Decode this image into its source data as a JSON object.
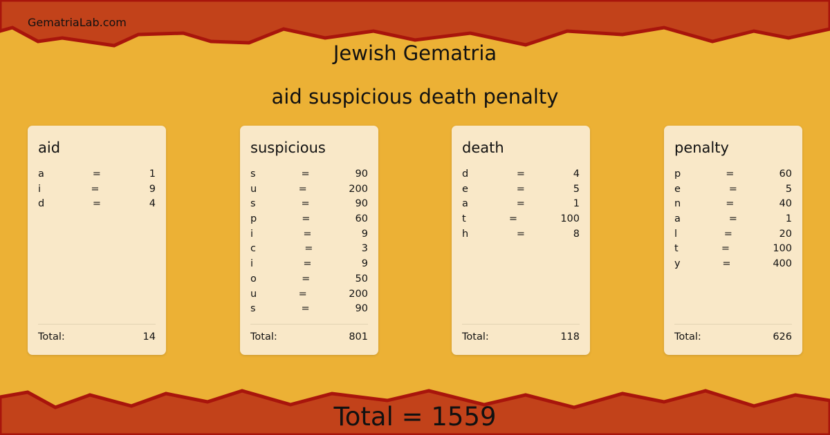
{
  "site": "GematriaLab.com",
  "heading": "Jewish Gematria",
  "phrase": "aid suspicious death penalty",
  "colors": {
    "background": "#ecb135",
    "band": "#c2421a",
    "band_edge": "#a8150c",
    "card": "#f9e8c8"
  },
  "total_label": "Total:",
  "words": [
    {
      "word": "aid",
      "letters": [
        [
          "a",
          "=",
          "1"
        ],
        [
          "i",
          "=",
          "9"
        ],
        [
          "d",
          "=",
          "4"
        ]
      ],
      "total": "14"
    },
    {
      "word": "suspicious",
      "letters": [
        [
          "s",
          "=",
          "90"
        ],
        [
          "u",
          "=",
          "200"
        ],
        [
          "s",
          "=",
          "90"
        ],
        [
          "p",
          "=",
          "60"
        ],
        [
          "i",
          "=",
          "9"
        ],
        [
          "c",
          "=",
          "3"
        ],
        [
          "i",
          "=",
          "9"
        ],
        [
          "o",
          "=",
          "50"
        ],
        [
          "u",
          "=",
          "200"
        ],
        [
          "s",
          "=",
          "90"
        ]
      ],
      "total": "801"
    },
    {
      "word": "death",
      "letters": [
        [
          "d",
          "=",
          "4"
        ],
        [
          "e",
          "=",
          "5"
        ],
        [
          "a",
          "=",
          "1"
        ],
        [
          "t",
          "=",
          "100"
        ],
        [
          "h",
          "=",
          "8"
        ]
      ],
      "total": "118"
    },
    {
      "word": "penalty",
      "letters": [
        [
          "p",
          "=",
          "60"
        ],
        [
          "e",
          "=",
          "5"
        ],
        [
          "n",
          "=",
          "40"
        ],
        [
          "a",
          "=",
          "1"
        ],
        [
          "l",
          "=",
          "20"
        ],
        [
          "t",
          "=",
          "100"
        ],
        [
          "y",
          "=",
          "400"
        ]
      ],
      "total": "626"
    }
  ],
  "grand_total": "Total = 1559"
}
